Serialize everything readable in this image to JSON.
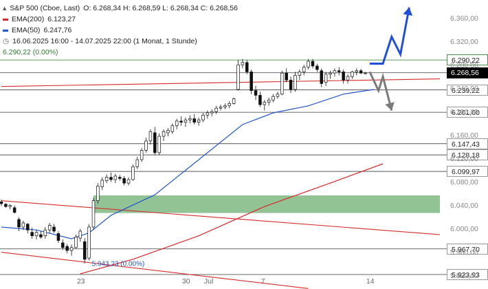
{
  "legend": {
    "instrument": "S&P 500 (Cboe, Last)",
    "ohlc": "O: 6.268,34  H: 6.268,59  L: 6.268,34  C: 6.268,56",
    "ema200_label": "EMA(200)",
    "ema200_value": "6.123,27",
    "ema50_label": "EMA(50)",
    "ema50_value": "6.247,76",
    "period": "16.06.2025 16:00 - 14.07.2025 22:00   (1 Monat, 1 Stunde)",
    "change": "6.290,22 (0.00%)"
  },
  "colors": {
    "ema200": "#d9262a",
    "ema50": "#2255cc",
    "channel": "#d62a2a",
    "zone": "#7fb883",
    "arrow_up": "#1f4fd8",
    "arrow_down": "#7a7a7a",
    "level_line": "#555555",
    "candle": "#111111",
    "tag_dark": "#000000"
  },
  "chart_data": {
    "type": "candlestick",
    "y_ticks": [
      "6.360,00",
      "6.320,00",
      "6.280,00",
      "6.240,00",
      "6.200,00",
      "6.160,00",
      "6.120,00",
      "6.080,00",
      "6.040,00",
      "6.000,00",
      "5.960,00",
      "5.920,00"
    ],
    "y_tick_values": [
      6360,
      6320,
      6280,
      6240,
      6200,
      6160,
      6120,
      6080,
      6040,
      6000,
      5960,
      5920
    ],
    "x_labels": [
      "23",
      "30",
      "Jul",
      "7",
      "14"
    ],
    "ylim": [
      5918,
      6388
    ],
    "x_range": [
      0,
      100
    ],
    "x_label_positions": [
      18,
      42,
      47,
      60,
      84
    ],
    "horizontal_levels": [
      {
        "value": 6290.22,
        "label": "6.290,22",
        "style": "green"
      },
      {
        "value": 6268.56,
        "label": "6.268,56",
        "style": "dark"
      },
      {
        "value": 6239.22,
        "label": "6.239,22",
        "style": "light"
      },
      {
        "value": 6201.0,
        "label": "6.201,00",
        "style": "light"
      },
      {
        "value": 6147.43,
        "label": "6.147,43",
        "style": "light"
      },
      {
        "value": 6128.18,
        "label": "6.128,18",
        "style": "light"
      },
      {
        "value": 6099.97,
        "label": "6.099,97",
        "style": "light"
      },
      {
        "value": 5967.7,
        "label": "5.967,70",
        "style": "light"
      },
      {
        "value": 5923.93,
        "label": "5.923,93",
        "style": "light"
      }
    ],
    "low_annotation": {
      "value": 5943.23,
      "label": "5.943,23 (0.00%)",
      "x": 20
    },
    "support_zone": {
      "from": 6029,
      "to": 6059,
      "x_start": 21,
      "x_end": 100
    },
    "upper_line": {
      "x": [
        0,
        100
      ],
      "y": [
        6245,
        6258
      ]
    },
    "channel_upper": {
      "x": [
        0,
        100
      ],
      "y": [
        6050,
        5992
      ]
    },
    "channel_lower": {
      "x": [
        0,
        70
      ],
      "y": [
        5962,
        5900
      ]
    },
    "ema200": {
      "x": [
        18,
        30,
        45,
        60,
        75,
        87
      ],
      "y": [
        5925,
        5950,
        5990,
        6040,
        6080,
        6113
      ]
    },
    "ema50": {
      "x": [
        0,
        8,
        16,
        20,
        25,
        35,
        45,
        55,
        62,
        70,
        78,
        85
      ],
      "y": [
        6005,
        6000,
        5985,
        5995,
        6025,
        6060,
        6120,
        6180,
        6200,
        6212,
        6232,
        6240
      ]
    },
    "candles": [
      [
        0,
        6048,
        6052,
        6041,
        6045
      ],
      [
        1,
        6044,
        6046,
        6038,
        6040
      ],
      [
        2,
        6040,
        6044,
        6035,
        6042
      ],
      [
        3,
        6038,
        6042,
        6028,
        6030
      ],
      [
        4,
        6018,
        6022,
        5998,
        6005
      ],
      [
        5,
        6005,
        6016,
        6000,
        6012
      ],
      [
        6,
        6010,
        6012,
        5994,
        6000
      ],
      [
        7,
        5996,
        6004,
        5985,
        5990
      ],
      [
        8,
        5990,
        6000,
        5984,
        5996
      ],
      [
        9,
        5992,
        5998,
        5985,
        5988
      ],
      [
        10,
        5990,
        6005,
        5985,
        6000
      ],
      [
        11,
        6000,
        6012,
        5995,
        6008
      ],
      [
        12,
        6005,
        6010,
        5995,
        5998
      ],
      [
        13,
        5994,
        5998,
        5978,
        5982
      ],
      [
        14,
        5978,
        5984,
        5966,
        5970
      ],
      [
        15,
        5972,
        5976,
        5960,
        5965
      ],
      [
        16,
        5965,
        5975,
        5956,
        5970
      ],
      [
        17,
        5970,
        5992,
        5968,
        5988
      ],
      [
        18,
        5986,
        6002,
        5980,
        5998
      ],
      [
        19,
        5980,
        5986,
        5943,
        5950
      ],
      [
        20,
        5952,
        6010,
        5948,
        6005
      ],
      [
        21,
        6005,
        6055,
        6000,
        6050
      ],
      [
        22,
        6050,
        6080,
        6045,
        6075
      ],
      [
        23,
        6074,
        6090,
        6068,
        6085
      ],
      [
        24,
        6084,
        6095,
        6080,
        6090
      ],
      [
        25,
        6090,
        6098,
        6082,
        6086
      ],
      [
        26,
        6086,
        6096,
        6080,
        6092
      ],
      [
        27,
        6090,
        6094,
        6084,
        6088
      ],
      [
        28,
        6088,
        6092,
        6076,
        6080
      ],
      [
        29,
        6080,
        6090,
        6076,
        6086
      ],
      [
        30,
        6086,
        6112,
        6084,
        6108
      ],
      [
        31,
        6108,
        6125,
        6104,
        6120
      ],
      [
        32,
        6120,
        6140,
        6116,
        6136
      ],
      [
        33,
        6136,
        6158,
        6132,
        6152
      ],
      [
        34,
        6152,
        6172,
        6146,
        6168
      ],
      [
        35,
        6166,
        6176,
        6128,
        6132
      ],
      [
        36,
        6132,
        6165,
        6128,
        6160
      ],
      [
        37,
        6160,
        6172,
        6152,
        6168
      ],
      [
        38,
        6166,
        6174,
        6160,
        6170
      ],
      [
        39,
        6168,
        6182,
        6164,
        6178
      ],
      [
        40,
        6178,
        6190,
        6172,
        6186
      ],
      [
        41,
        6186,
        6194,
        6178,
        6184
      ],
      [
        42,
        6184,
        6192,
        6176,
        6188
      ],
      [
        43,
        6188,
        6196,
        6182,
        6190
      ],
      [
        44,
        6190,
        6198,
        6180,
        6184
      ],
      [
        45,
        6184,
        6192,
        6178,
        6188
      ],
      [
        46,
        6188,
        6200,
        6184,
        6196
      ],
      [
        47,
        6196,
        6204,
        6190,
        6200
      ],
      [
        48,
        6200,
        6206,
        6194,
        6202
      ],
      [
        49,
        6202,
        6212,
        6198,
        6208
      ],
      [
        50,
        6208,
        6214,
        6204,
        6210
      ],
      [
        51,
        6210,
        6216,
        6206,
        6212
      ],
      [
        52,
        6212,
        6220,
        6208,
        6216
      ],
      [
        53,
        6216,
        6226,
        6214,
        6224
      ],
      [
        54,
        6240,
        6290,
        6238,
        6282
      ],
      [
        55,
        6282,
        6292,
        6276,
        6286
      ],
      [
        56,
        6286,
        6290,
        6266,
        6270
      ],
      [
        57,
        6270,
        6274,
        6232,
        6238
      ],
      [
        58,
        6238,
        6246,
        6222,
        6230
      ],
      [
        59,
        6230,
        6236,
        6210,
        6214
      ],
      [
        60,
        6214,
        6222,
        6204,
        6218
      ],
      [
        61,
        6218,
        6226,
        6212,
        6222
      ],
      [
        62,
        6222,
        6232,
        6218,
        6228
      ],
      [
        63,
        6228,
        6236,
        6224,
        6232
      ],
      [
        64,
        6232,
        6272,
        6230,
        6268
      ],
      [
        65,
        6268,
        6276,
        6252,
        6256
      ],
      [
        66,
        6256,
        6262,
        6234,
        6240
      ],
      [
        67,
        6240,
        6270,
        6236,
        6264
      ],
      [
        68,
        6264,
        6274,
        6256,
        6270
      ],
      [
        69,
        6270,
        6282,
        6264,
        6278
      ],
      [
        70,
        6278,
        6292,
        6274,
        6288
      ],
      [
        71,
        6288,
        6292,
        6276,
        6280
      ],
      [
        72,
        6280,
        6284,
        6270,
        6274
      ],
      [
        73,
        6272,
        6276,
        6244,
        6250
      ],
      [
        74,
        6252,
        6270,
        6246,
        6266
      ],
      [
        75,
        6266,
        6272,
        6258,
        6268
      ],
      [
        76,
        6268,
        6276,
        6262,
        6272
      ],
      [
        77,
        6272,
        6278,
        6264,
        6270
      ],
      [
        78,
        6270,
        6274,
        6250,
        6256
      ],
      [
        79,
        6256,
        6266,
        6250,
        6262
      ],
      [
        80,
        6262,
        6272,
        6258,
        6270
      ],
      [
        81,
        6270,
        6276,
        6264,
        6272
      ],
      [
        82,
        6272,
        6275,
        6266,
        6268
      ],
      [
        83,
        6268,
        6270,
        6266,
        6268
      ]
    ],
    "scenarios": [
      {
        "name": "",
        "direction": "up",
        "x": [
          84,
          87,
          89,
          91,
          93
        ],
        "y": [
          6284,
          6284,
          6330,
          6300,
          6380
        ]
      },
      {
        "name": "",
        "direction": "down",
        "x": [
          84,
          86,
          87,
          89
        ],
        "y": [
          6270,
          6238,
          6262,
          6204
        ]
      }
    ]
  }
}
